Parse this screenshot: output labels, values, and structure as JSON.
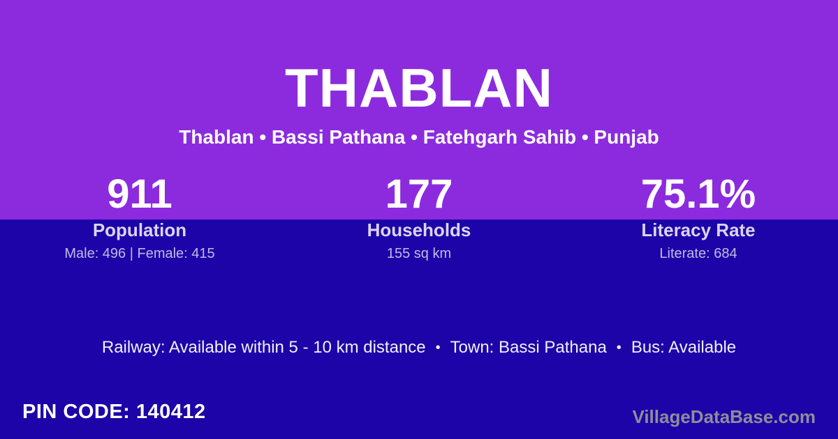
{
  "card": {
    "title": "THABLAN",
    "subtitle": "Thablan • Bassi Pathana • Fatehgarh Sahib • Punjab"
  },
  "stats": [
    {
      "value": "911",
      "label": "Population",
      "detail": "Male: 496 | Female: 415"
    },
    {
      "value": "177",
      "label": "Households",
      "detail": "155 sq km"
    },
    {
      "value": "75.1%",
      "label": "Literacy Rate",
      "detail": "Literate: 684"
    }
  ],
  "info_line": {
    "items": [
      "Railway: Available within 5 - 10 km distance",
      "Town: Bassi Pathana",
      "Bus: Available"
    ],
    "separator": "•"
  },
  "footer": {
    "pin_code": "PIN CODE: 140412",
    "watermark": "VillageDataBase.com"
  },
  "colors": {
    "top_background": "#8C2BDE",
    "bottom_background": "#1C04A8",
    "title_text": "#FFFFFF",
    "label_text": "#DCD4F2",
    "detail_text": "#C3BAE6",
    "info_text": "#F2F0FA",
    "watermark_text": "#8F8D99"
  }
}
